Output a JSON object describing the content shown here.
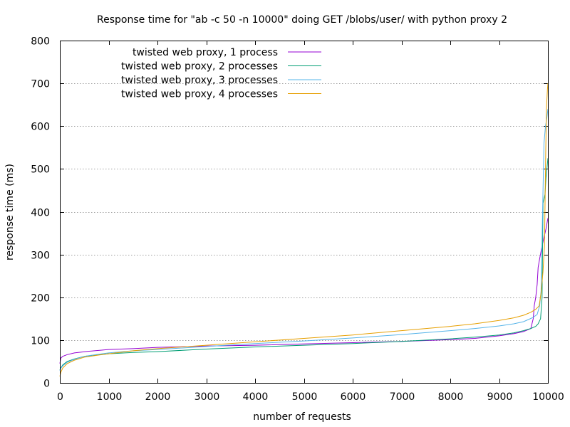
{
  "chart_data": {
    "type": "line",
    "title": "Response time for \"ab -c 50 -n 10000\" doing GET /blobs/user/ with python proxy 2",
    "xlabel": "number of requests",
    "ylabel": "response time (ms)",
    "xlim": [
      0,
      10000
    ],
    "ylim": [
      0,
      800
    ],
    "xticks": [
      0,
      1000,
      2000,
      3000,
      4000,
      5000,
      6000,
      7000,
      8000,
      9000,
      10000
    ],
    "yticks": [
      0,
      100,
      200,
      300,
      400,
      500,
      600,
      700,
      800
    ],
    "grid": true,
    "legend_position": "top-left",
    "series": [
      {
        "name": "twisted web proxy, 1 process",
        "color": "#9400d3",
        "points": [
          [
            0,
            45
          ],
          [
            20,
            58
          ],
          [
            60,
            62
          ],
          [
            150,
            66
          ],
          [
            300,
            70
          ],
          [
            600,
            74
          ],
          [
            1000,
            78
          ],
          [
            1500,
            80
          ],
          [
            2000,
            83
          ],
          [
            3000,
            86
          ],
          [
            4000,
            88
          ],
          [
            5000,
            91
          ],
          [
            6000,
            94
          ],
          [
            7000,
            97
          ],
          [
            8000,
            101
          ],
          [
            8500,
            104
          ],
          [
            9000,
            110
          ],
          [
            9300,
            115
          ],
          [
            9500,
            120
          ],
          [
            9650,
            127
          ],
          [
            9700,
            150
          ],
          [
            9720,
            180
          ],
          [
            9750,
            200
          ],
          [
            9780,
            230
          ],
          [
            9800,
            270
          ],
          [
            9830,
            290
          ],
          [
            9880,
            320
          ],
          [
            9920,
            340
          ],
          [
            9960,
            360
          ],
          [
            10000,
            385
          ]
        ]
      },
      {
        "name": "twisted web proxy, 2 processes",
        "color": "#009e73",
        "points": [
          [
            0,
            30
          ],
          [
            20,
            35
          ],
          [
            60,
            42
          ],
          [
            150,
            50
          ],
          [
            300,
            56
          ],
          [
            500,
            62
          ],
          [
            800,
            66
          ],
          [
            1000,
            68
          ],
          [
            1500,
            71
          ],
          [
            2000,
            73
          ],
          [
            3000,
            79
          ],
          [
            4000,
            84
          ],
          [
            5000,
            88
          ],
          [
            6000,
            92
          ],
          [
            7000,
            97
          ],
          [
            8000,
            103
          ],
          [
            8500,
            107
          ],
          [
            9000,
            112
          ],
          [
            9300,
            117
          ],
          [
            9500,
            122
          ],
          [
            9650,
            127
          ],
          [
            9750,
            132
          ],
          [
            9800,
            138
          ],
          [
            9850,
            150
          ],
          [
            9880,
            200
          ],
          [
            9900,
            420
          ],
          [
            9940,
            440
          ],
          [
            9960,
            480
          ],
          [
            9980,
            500
          ],
          [
            10000,
            525
          ]
        ]
      },
      {
        "name": "twisted web proxy, 3 processes",
        "color": "#56b4e9",
        "points": [
          [
            0,
            28
          ],
          [
            20,
            34
          ],
          [
            60,
            40
          ],
          [
            150,
            48
          ],
          [
            300,
            55
          ],
          [
            500,
            62
          ],
          [
            800,
            67
          ],
          [
            1000,
            70
          ],
          [
            1500,
            75
          ],
          [
            2000,
            78
          ],
          [
            3000,
            85
          ],
          [
            4000,
            92
          ],
          [
            5000,
            98
          ],
          [
            6000,
            105
          ],
          [
            7000,
            113
          ],
          [
            8000,
            122
          ],
          [
            8500,
            127
          ],
          [
            9000,
            133
          ],
          [
            9300,
            138
          ],
          [
            9500,
            143
          ],
          [
            9600,
            148
          ],
          [
            9700,
            153
          ],
          [
            9780,
            160
          ],
          [
            9830,
            180
          ],
          [
            9860,
            215
          ],
          [
            9890,
            400
          ],
          [
            9920,
            560
          ],
          [
            9950,
            600
          ],
          [
            9980,
            620
          ],
          [
            10000,
            640
          ]
        ]
      },
      {
        "name": "twisted web proxy, 4 processes",
        "color": "#e69f00",
        "points": [
          [
            0,
            15
          ],
          [
            20,
            25
          ],
          [
            60,
            35
          ],
          [
            150,
            45
          ],
          [
            300,
            53
          ],
          [
            500,
            60
          ],
          [
            800,
            65
          ],
          [
            1000,
            68
          ],
          [
            1500,
            75
          ],
          [
            2000,
            80
          ],
          [
            3000,
            88
          ],
          [
            4000,
            96
          ],
          [
            5000,
            104
          ],
          [
            6000,
            112
          ],
          [
            7000,
            122
          ],
          [
            8000,
            132
          ],
          [
            8500,
            138
          ],
          [
            9000,
            146
          ],
          [
            9300,
            152
          ],
          [
            9500,
            158
          ],
          [
            9650,
            165
          ],
          [
            9750,
            172
          ],
          [
            9820,
            180
          ],
          [
            9860,
            210
          ],
          [
            9900,
            260
          ],
          [
            9930,
            320
          ],
          [
            9950,
            500
          ],
          [
            9970,
            640
          ],
          [
            9990,
            685
          ],
          [
            10000,
            700
          ]
        ]
      }
    ]
  }
}
